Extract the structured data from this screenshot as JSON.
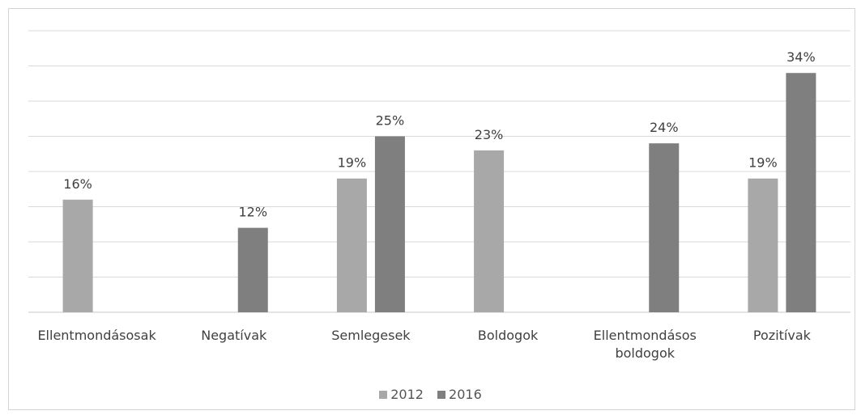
{
  "chart_data": {
    "type": "bar",
    "categories": [
      [
        "Ellentmondásosak"
      ],
      [
        "Negatívak"
      ],
      [
        "Semlegesek"
      ],
      [
        "Boldogok"
      ],
      [
        "Ellentmondásos",
        "boldogok"
      ],
      [
        "Pozitívak"
      ]
    ],
    "series": [
      {
        "name": "2012",
        "color": "#a8a8a8",
        "values": [
          16,
          null,
          19,
          23,
          null,
          19
        ],
        "labels": [
          "16%",
          "",
          "19%",
          "23%",
          "",
          "19%"
        ]
      },
      {
        "name": "2016",
        "color": "#7f7f7f",
        "values": [
          null,
          12,
          25,
          null,
          24,
          34
        ],
        "labels": [
          "",
          "12%",
          "25%",
          "",
          "24%",
          "34%"
        ]
      }
    ],
    "ylim": [
      0,
      40
    ],
    "grid": true,
    "legend_position": "bottom"
  }
}
